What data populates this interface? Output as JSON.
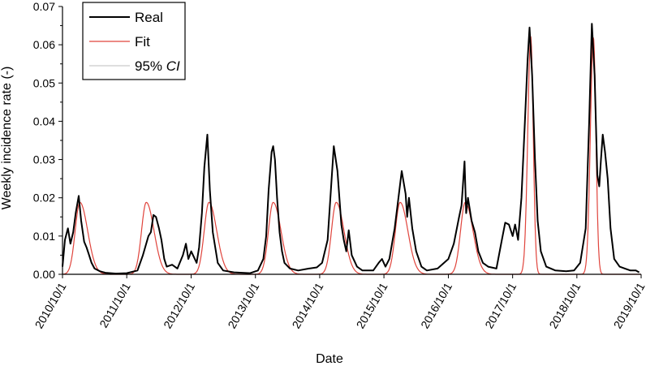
{
  "chart_data": {
    "type": "line",
    "xlabel": "Date",
    "ylabel": "Weekly incidence rate (-)",
    "xlim": [
      "2010/10/1",
      "2019/10/1"
    ],
    "ylim": [
      0,
      0.07
    ],
    "x_ticks": [
      "2010/10/1",
      "2011/10/1",
      "2012/10/1",
      "2013/10/1",
      "2014/10/1",
      "2015/10/1",
      "2016/10/1",
      "2017/10/1",
      "2018/10/1",
      "2019/10/1"
    ],
    "y_ticks": [
      "0.00",
      "0.01",
      "0.02",
      "0.03",
      "0.04",
      "0.05",
      "0.06",
      "0.07"
    ],
    "legend": {
      "placement": "top-left",
      "entries": [
        {
          "name": "Real",
          "color": "#000000"
        },
        {
          "name": "Fit",
          "color": "#e0443c"
        },
        {
          "name": "95% ",
          "italic": "CI",
          "color": "#bdbdbd"
        }
      ]
    },
    "series": [
      {
        "name": "Real",
        "color": "#000000",
        "points": [
          [
            "2010/10/1",
            0.002
          ],
          [
            "2010/10/15",
            0.009
          ],
          [
            "2010/11/1",
            0.012
          ],
          [
            "2010/11/15",
            0.008
          ],
          [
            "2010/12/1",
            0.011
          ],
          [
            "2010/12/15",
            0.016
          ],
          [
            "2011/1/1",
            0.0205
          ],
          [
            "2011/1/15",
            0.014
          ],
          [
            "2011/2/1",
            0.0085
          ],
          [
            "2011/2/15",
            0.007
          ],
          [
            "2011/3/1",
            0.005
          ],
          [
            "2011/3/15",
            0.003
          ],
          [
            "2011/4/1",
            0.0015
          ],
          [
            "2011/5/1",
            0.0008
          ],
          [
            "2011/6/1",
            0.0004
          ],
          [
            "2011/8/1",
            0.0002
          ],
          [
            "2011/10/1",
            0.0003
          ],
          [
            "2011/12/1",
            0.001
          ],
          [
            "2012/1/1",
            0.005
          ],
          [
            "2012/2/1",
            0.01
          ],
          [
            "2012/2/15",
            0.011
          ],
          [
            "2012/3/1",
            0.0155
          ],
          [
            "2012/3/15",
            0.015
          ],
          [
            "2012/4/1",
            0.012
          ],
          [
            "2012/4/15",
            0.009
          ],
          [
            "2012/5/1",
            0.004
          ],
          [
            "2012/5/15",
            0.002
          ],
          [
            "2012/6/15",
            0.0025
          ],
          [
            "2012/7/15",
            0.0015
          ],
          [
            "2012/8/15",
            0.005
          ],
          [
            "2012/9/1",
            0.008
          ],
          [
            "2012/9/15",
            0.004
          ],
          [
            "2012/10/1",
            0.006
          ],
          [
            "2012/11/1",
            0.003
          ],
          [
            "2012/11/15",
            0.007
          ],
          [
            "2012/12/1",
            0.016
          ],
          [
            "2012/12/15",
            0.028
          ],
          [
            "2013/1/1",
            0.0365
          ],
          [
            "2013/1/15",
            0.022
          ],
          [
            "2013/2/1",
            0.011
          ],
          [
            "2013/3/1",
            0.003
          ],
          [
            "2013/4/1",
            0.001
          ],
          [
            "2013/6/1",
            0.0005
          ],
          [
            "2013/9/1",
            0.0003
          ],
          [
            "2013/10/15",
            0.001
          ],
          [
            "2013/11/15",
            0.004
          ],
          [
            "2013/12/1",
            0.01
          ],
          [
            "2013/12/15",
            0.022
          ],
          [
            "2014/1/1",
            0.032
          ],
          [
            "2014/1/10",
            0.0335
          ],
          [
            "2014/1/20",
            0.03
          ],
          [
            "2014/2/1",
            0.02
          ],
          [
            "2014/2/15",
            0.011
          ],
          [
            "2014/3/1",
            0.006
          ],
          [
            "2014/3/15",
            0.003
          ],
          [
            "2014/4/15",
            0.0015
          ],
          [
            "2014/6/1",
            0.001
          ],
          [
            "2014/8/1",
            0.0015
          ],
          [
            "2014/9/15",
            0.0018
          ],
          [
            "2014/10/15",
            0.003
          ],
          [
            "2014/11/15",
            0.009
          ],
          [
            "2014/12/1",
            0.02
          ],
          [
            "2014/12/20",
            0.0335
          ],
          [
            "2015/1/10",
            0.027
          ],
          [
            "2015/2/1",
            0.013
          ],
          [
            "2015/2/15",
            0.009
          ],
          [
            "2015/3/1",
            0.006
          ],
          [
            "2015/3/15",
            0.0115
          ],
          [
            "2015/4/1",
            0.005
          ],
          [
            "2015/5/1",
            0.002
          ],
          [
            "2015/6/1",
            0.001
          ],
          [
            "2015/8/1",
            0.001
          ],
          [
            "2015/9/1",
            0.003
          ],
          [
            "2015/9/20",
            0.004
          ],
          [
            "2015/10/10",
            0.002
          ],
          [
            "2015/11/1",
            0.004
          ],
          [
            "2015/12/1",
            0.012
          ],
          [
            "2015/12/20",
            0.019
          ],
          [
            "2016/1/10",
            0.027
          ],
          [
            "2016/2/1",
            0.021
          ],
          [
            "2016/2/10",
            0.015
          ],
          [
            "2016/2/20",
            0.02
          ],
          [
            "2016/3/10",
            0.012
          ],
          [
            "2016/4/1",
            0.006
          ],
          [
            "2016/5/1",
            0.002
          ],
          [
            "2016/6/1",
            0.001
          ],
          [
            "2016/8/1",
            0.0015
          ],
          [
            "2016/10/1",
            0.004
          ],
          [
            "2016/11/1",
            0.008
          ],
          [
            "2016/12/1",
            0.015
          ],
          [
            "2016/12/15",
            0.018
          ],
          [
            "2017/1/1",
            0.0295
          ],
          [
            "2017/1/10",
            0.016
          ],
          [
            "2017/1/20",
            0.02
          ],
          [
            "2017/2/10",
            0.014
          ],
          [
            "2017/3/1",
            0.011
          ],
          [
            "2017/3/20",
            0.006
          ],
          [
            "2017/4/15",
            0.003
          ],
          [
            "2017/5/15",
            0.002
          ],
          [
            "2017/7/1",
            0.0015
          ],
          [
            "2017/8/1",
            0.009
          ],
          [
            "2017/8/20",
            0.0135
          ],
          [
            "2017/9/10",
            0.013
          ],
          [
            "2017/10/1",
            0.01
          ],
          [
            "2017/10/15",
            0.013
          ],
          [
            "2017/11/1",
            0.009
          ],
          [
            "2017/11/20",
            0.02
          ],
          [
            "2017/12/10",
            0.04
          ],
          [
            "2017/12/25",
            0.056
          ],
          [
            "2018/1/5",
            0.0645
          ],
          [
            "2018/1/20",
            0.052
          ],
          [
            "2018/2/5",
            0.03
          ],
          [
            "2018/2/20",
            0.014
          ],
          [
            "2018/3/10",
            0.006
          ],
          [
            "2018/4/10",
            0.002
          ],
          [
            "2018/6/1",
            0.001
          ],
          [
            "2018/8/1",
            0.0008
          ],
          [
            "2018/9/15",
            0.001
          ],
          [
            "2018/10/20",
            0.003
          ],
          [
            "2018/11/20",
            0.012
          ],
          [
            "2018/12/10",
            0.04
          ],
          [
            "2018/12/25",
            0.0655
          ],
          [
            "2019/1/10",
            0.052
          ],
          [
            "2019/1/25",
            0.026
          ],
          [
            "2019/2/5",
            0.023
          ],
          [
            "2019/2/15",
            0.03
          ],
          [
            "2019/2/25",
            0.0365
          ],
          [
            "2019/3/10",
            0.032
          ],
          [
            "2019/3/25",
            0.025
          ],
          [
            "2019/4/10",
            0.012
          ],
          [
            "2019/5/1",
            0.004
          ],
          [
            "2019/6/1",
            0.002
          ],
          [
            "2019/7/1",
            0.0015
          ],
          [
            "2019/8/1",
            0.001
          ],
          [
            "2019/9/1",
            0.001
          ],
          [
            "2019/9/20",
            0.0005
          ]
        ]
      },
      {
        "name": "Fit",
        "color": "#e0443c",
        "peaks": [
          {
            "date": "2011/1/8",
            "value": 0.0188
          },
          {
            "date": "2012/1/20",
            "value": 0.0188
          },
          {
            "date": "2013/1/10",
            "value": 0.0188
          },
          {
            "date": "2014/1/10",
            "value": 0.0188
          },
          {
            "date": "2015/1/3",
            "value": 0.0188
          },
          {
            "date": "2016/1/1",
            "value": 0.0188
          },
          {
            "date": "2017/1/5",
            "value": 0.0188
          },
          {
            "date": "2018/1/12",
            "value": 0.062
          },
          {
            "date": "2019/1/3",
            "value": 0.062
          }
        ]
      },
      {
        "name": "95% CI",
        "color": "#bdbdbd"
      }
    ]
  }
}
